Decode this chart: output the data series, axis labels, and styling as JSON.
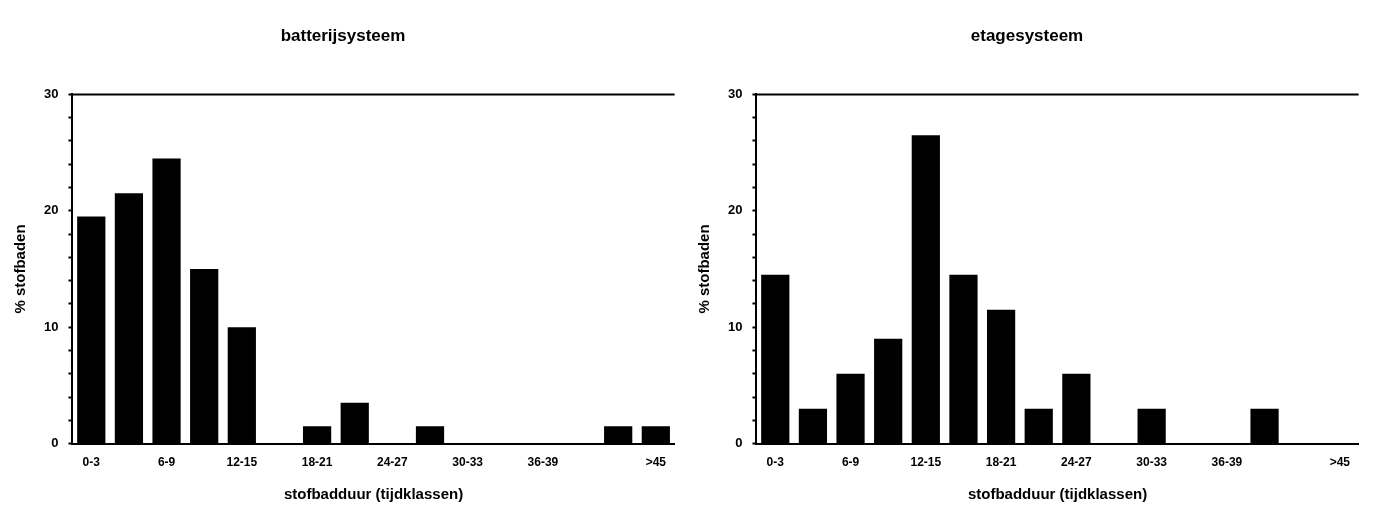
{
  "chart_data": [
    {
      "type": "bar",
      "title": "batterijsysteem",
      "xlabel": "stofbadduur (tijdklassen)",
      "ylabel": "% stofbaden",
      "categories": [
        "0-3",
        null,
        "6-9",
        null,
        "12-15",
        null,
        "18-21",
        null,
        "24-27",
        null,
        "30-33",
        null,
        "36-39",
        null,
        null,
        ">45"
      ],
      "values": [
        19.5,
        21.5,
        24.5,
        15,
        10,
        0,
        1.5,
        3.5,
        0,
        1.5,
        0,
        0,
        0,
        0,
        1.5,
        1.5
      ],
      "color": "#000000",
      "ylim": [
        0,
        30
      ],
      "yticks": [
        0,
        {
          "value": 2,
          "label": null
        },
        {
          "value": 4,
          "label": null
        },
        {
          "value": 6,
          "label": null
        },
        {
          "value": 8,
          "label": null
        },
        10,
        {
          "value": 12,
          "label": null
        },
        {
          "value": 14,
          "label": null
        },
        {
          "value": 16,
          "label": null
        },
        {
          "value": 18,
          "label": null
        },
        20,
        {
          "value": 22,
          "label": null
        },
        {
          "value": 24,
          "label": null
        },
        {
          "value": 26,
          "label": null
        },
        {
          "value": 28,
          "label": null
        },
        30
      ]
    },
    {
      "type": "bar",
      "title": "etagesysteem",
      "xlabel": "stofbadduur (tijdklassen)",
      "ylabel": "% stofbaden",
      "categories": [
        "0-3",
        null,
        "6-9",
        null,
        "12-15",
        null,
        "18-21",
        null,
        "24-27",
        null,
        "30-33",
        null,
        "36-39",
        null,
        null,
        ">45"
      ],
      "values": [
        14.5,
        3,
        6,
        9,
        26.5,
        14.5,
        11.5,
        3,
        6,
        0,
        3,
        0,
        0,
        3,
        0,
        0
      ],
      "color": "#000000",
      "ylim": [
        0,
        30
      ],
      "yticks": [
        0,
        {
          "value": 2,
          "label": null
        },
        {
          "value": 4,
          "label": null
        },
        {
          "value": 6,
          "label": null
        },
        {
          "value": 8,
          "label": null
        },
        10,
        {
          "value": 12,
          "label": null
        },
        {
          "value": 14,
          "label": null
        },
        {
          "value": 16,
          "label": null
        },
        {
          "value": 18,
          "label": null
        },
        20,
        {
          "value": 22,
          "label": null
        },
        {
          "value": 24,
          "label": null
        },
        {
          "value": 26,
          "label": null
        },
        {
          "value": 28,
          "label": null
        },
        30
      ]
    }
  ]
}
